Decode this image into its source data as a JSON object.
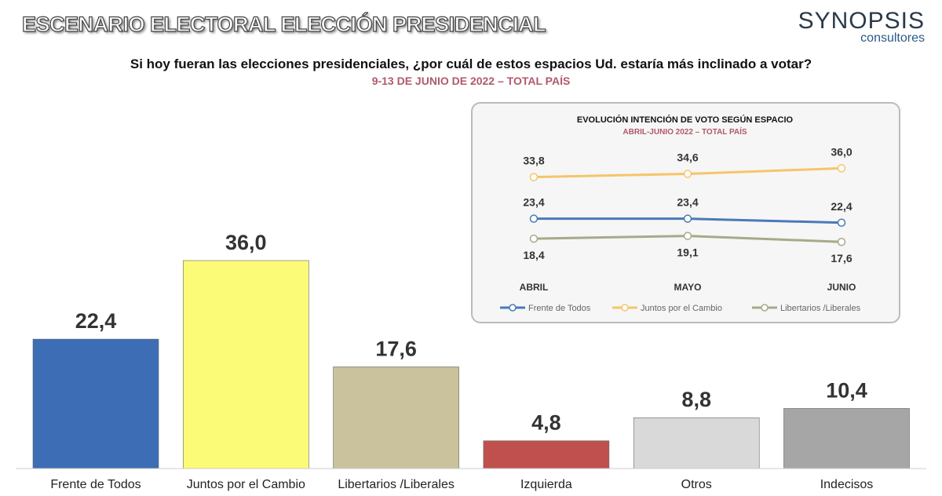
{
  "header": {
    "title": "ESCENARIO ELECTORAL ELECCIÓN PRESIDENCIAL",
    "logo_line1": "SYNOPSIS",
    "logo_line2": "consultores"
  },
  "question": "Si hoy fueran las elecciones presidenciales, ¿por cuál de estos espacios Ud. estaría más inclinado a votar?",
  "subtitle": "9-13 DE JUNIO DE 2022 – TOTAL PAÍS",
  "chart_data": [
    {
      "type": "bar",
      "title": "Si hoy fueran las elecciones presidenciales, ¿por cuál de estos espacios Ud. estaría más inclinado a votar?",
      "categories": [
        "Frente de Todos",
        "Juntos por el Cambio",
        "Libertarios /Liberales",
        "Izquierda",
        "Otros",
        "Indecisos"
      ],
      "values": [
        22.4,
        36.0,
        17.6,
        4.8,
        8.8,
        10.4
      ],
      "value_labels": [
        "22,4",
        "36,0",
        "17,6",
        "4,8",
        "8,8",
        "10,4"
      ],
      "colors": [
        "#3d6db5",
        "#fbfb78",
        "#c9c29c",
        "#c0504d",
        "#d9d9d9",
        "#a6a6a6"
      ],
      "ylim": [
        0,
        36
      ],
      "grid": false
    },
    {
      "type": "line",
      "title": "EVOLUCIÓN INTENCIÓN DE VOTO SEGÚN ESPACIO",
      "subtitle": "ABRIL-JUNIO 2022 – TOTAL PAÍS",
      "x": [
        "ABRIL",
        "MAYO",
        "JUNIO"
      ],
      "series": [
        {
          "name": "Frente de Todos",
          "values": [
            23.4,
            23.4,
            22.4
          ],
          "labels": [
            "23,4",
            "23,4",
            "22,4"
          ],
          "color": "#4a7ab8",
          "label_pos": "above"
        },
        {
          "name": "Juntos por el Cambio",
          "values": [
            33.8,
            34.6,
            36.0
          ],
          "labels": [
            "33,8",
            "34,6",
            "36,0"
          ],
          "color": "#f5c56a",
          "label_pos": "above"
        },
        {
          "name": "Libertarios /Liberales",
          "values": [
            18.4,
            19.1,
            17.6
          ],
          "labels": [
            "18,4",
            "19,1",
            "17,6"
          ],
          "color": "#a9a98a",
          "label_pos": "below"
        }
      ],
      "legend": "bottom",
      "grid": false
    }
  ]
}
